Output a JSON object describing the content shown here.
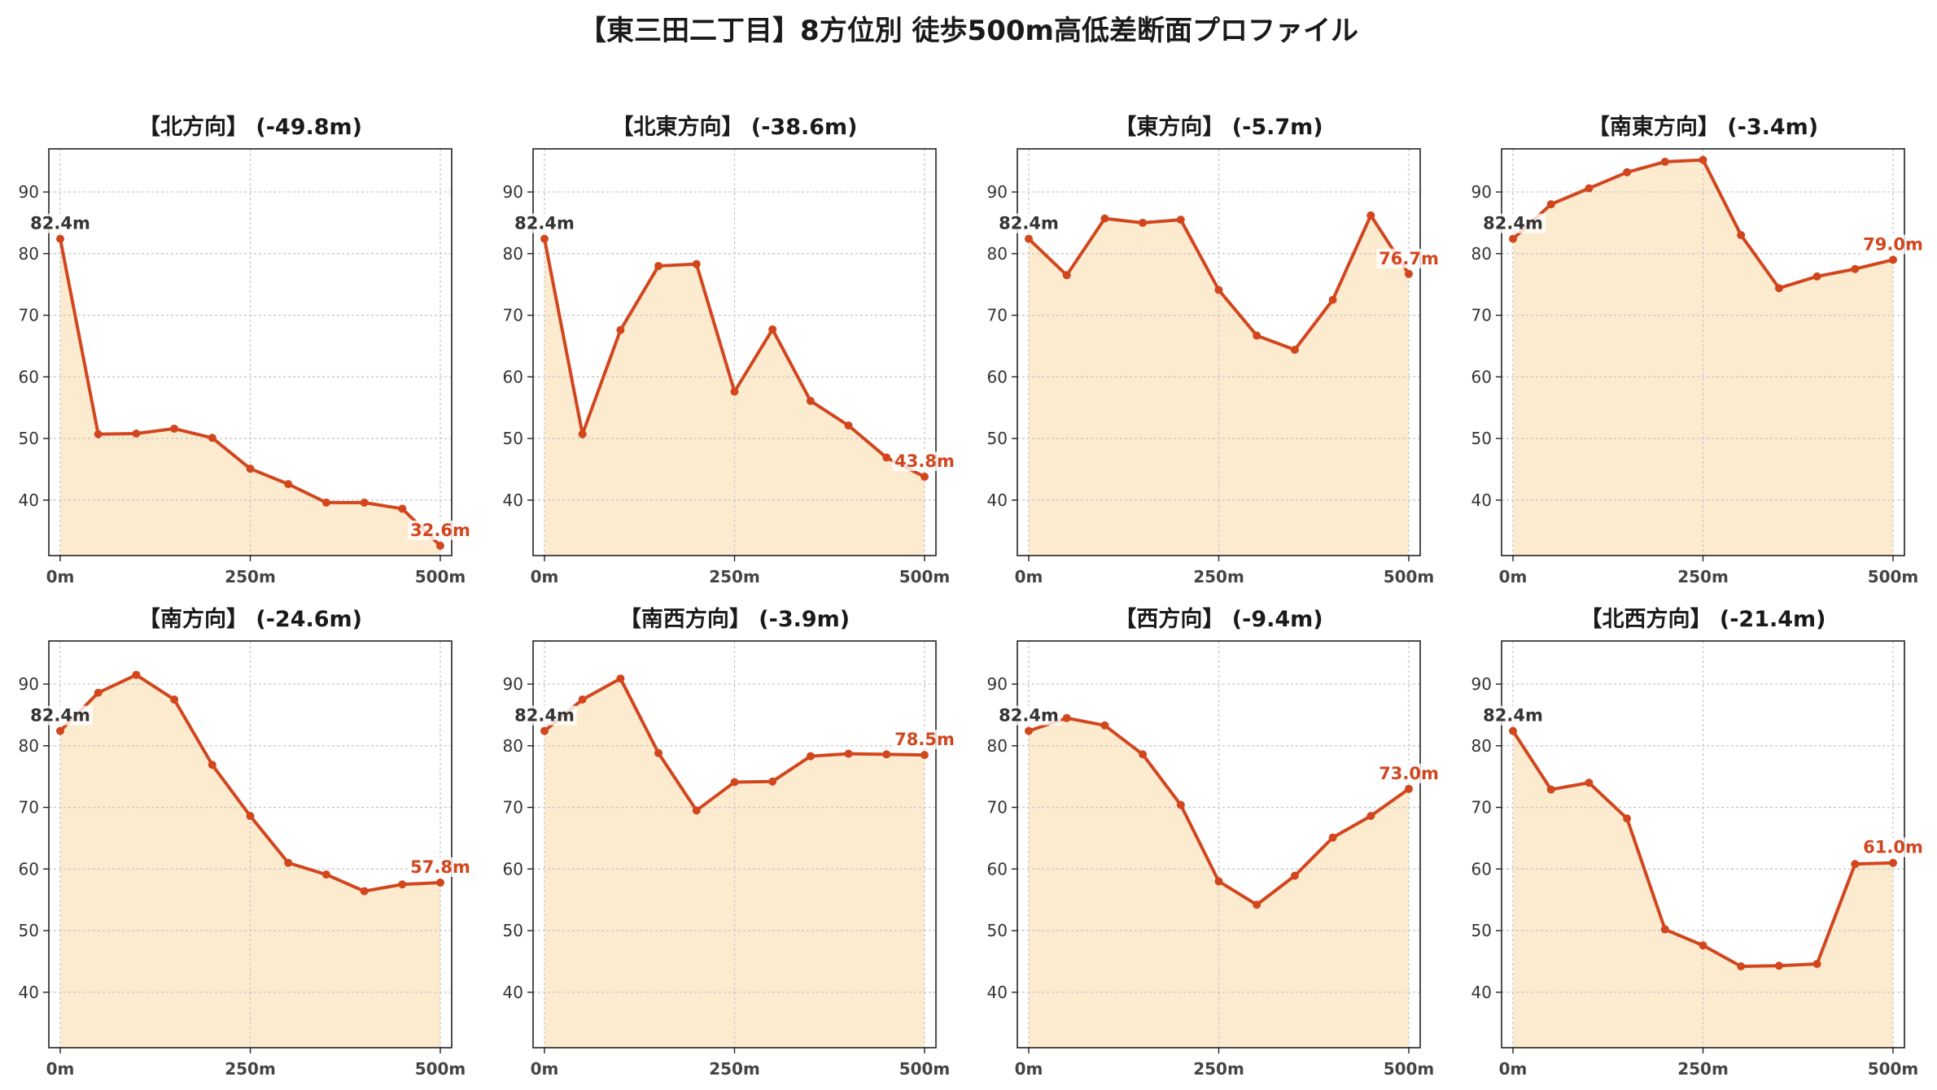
{
  "title": "【東三田二丁目】8方位別 徒歩500m高低差断面プロファイル",
  "colors": {
    "line": "#d2461e",
    "fill": "#fdebd0",
    "grid": "#c8c8c8",
    "start_label": "#333333"
  },
  "chart_data": [
    {
      "type": "area",
      "title": "【北方向】 (-49.8m)",
      "x": [
        0,
        50,
        100,
        150,
        200,
        250,
        300,
        350,
        400,
        450,
        500
      ],
      "y": [
        82.4,
        50.7,
        50.8,
        51.6,
        50.1,
        45.1,
        42.6,
        39.6,
        39.6,
        38.6,
        32.6
      ],
      "start_label": "82.4m",
      "end_label": "32.6m",
      "xticks": [
        "0m",
        "250m",
        "500m"
      ],
      "yticks": [
        40,
        50,
        60,
        70,
        80,
        90
      ],
      "ylim": [
        31,
        97
      ],
      "xlim": [
        -15,
        515
      ]
    },
    {
      "type": "area",
      "title": "【北東方向】 (-38.6m)",
      "x": [
        0,
        50,
        100,
        150,
        200,
        250,
        300,
        350,
        400,
        450,
        500
      ],
      "y": [
        82.4,
        50.7,
        67.6,
        78.0,
        78.3,
        57.6,
        67.7,
        56.1,
        52.1,
        46.9,
        43.8
      ],
      "start_label": "82.4m",
      "end_label": "43.8m",
      "xticks": [
        "0m",
        "250m",
        "500m"
      ],
      "yticks": [
        40,
        50,
        60,
        70,
        80,
        90
      ],
      "ylim": [
        31,
        97
      ],
      "xlim": [
        -15,
        515
      ]
    },
    {
      "type": "area",
      "title": "【東方向】 (-5.7m)",
      "x": [
        0,
        50,
        100,
        150,
        200,
        250,
        300,
        350,
        400,
        450,
        500
      ],
      "y": [
        82.4,
        76.5,
        85.7,
        85.0,
        85.5,
        74.1,
        66.7,
        64.4,
        72.5,
        86.2,
        76.7
      ],
      "start_label": "82.4m",
      "end_label": "76.7m",
      "xticks": [
        "0m",
        "250m",
        "500m"
      ],
      "yticks": [
        40,
        50,
        60,
        70,
        80,
        90
      ],
      "ylim": [
        31,
        97
      ],
      "xlim": [
        -15,
        515
      ]
    },
    {
      "type": "area",
      "title": "【南東方向】 (-3.4m)",
      "x": [
        0,
        50,
        100,
        150,
        200,
        250,
        300,
        350,
        400,
        450,
        500
      ],
      "y": [
        82.4,
        88.0,
        90.6,
        93.2,
        94.9,
        95.2,
        83.0,
        74.4,
        76.3,
        77.5,
        79.0
      ],
      "start_label": "82.4m",
      "end_label": "79.0m",
      "xticks": [
        "0m",
        "250m",
        "500m"
      ],
      "yticks": [
        40,
        50,
        60,
        70,
        80,
        90
      ],
      "ylim": [
        31,
        97
      ],
      "xlim": [
        -15,
        515
      ]
    },
    {
      "type": "area",
      "title": "【南方向】 (-24.6m)",
      "x": [
        0,
        50,
        100,
        150,
        200,
        250,
        300,
        350,
        400,
        450,
        500
      ],
      "y": [
        82.4,
        88.6,
        91.5,
        87.5,
        76.9,
        68.6,
        61.0,
        59.1,
        56.4,
        57.5,
        57.8
      ],
      "start_label": "82.4m",
      "end_label": "57.8m",
      "xticks": [
        "0m",
        "250m",
        "500m"
      ],
      "yticks": [
        40,
        50,
        60,
        70,
        80,
        90
      ],
      "ylim": [
        31,
        97
      ],
      "xlim": [
        -15,
        515
      ]
    },
    {
      "type": "area",
      "title": "【南西方向】 (-3.9m)",
      "x": [
        0,
        50,
        100,
        150,
        200,
        250,
        300,
        350,
        400,
        450,
        500
      ],
      "y": [
        82.4,
        87.5,
        90.9,
        78.8,
        69.5,
        74.1,
        74.2,
        78.3,
        78.7,
        78.6,
        78.5
      ],
      "start_label": "82.4m",
      "end_label": "78.5m",
      "xticks": [
        "0m",
        "250m",
        "500m"
      ],
      "yticks": [
        40,
        50,
        60,
        70,
        80,
        90
      ],
      "ylim": [
        31,
        97
      ],
      "xlim": [
        -15,
        515
      ]
    },
    {
      "type": "area",
      "title": "【西方向】 (-9.4m)",
      "x": [
        0,
        50,
        100,
        150,
        200,
        250,
        300,
        350,
        400,
        450,
        500
      ],
      "y": [
        82.4,
        84.5,
        83.3,
        78.6,
        70.4,
        58.0,
        54.2,
        58.9,
        65.1,
        68.6,
        73.0
      ],
      "start_label": "82.4m",
      "end_label": "73.0m",
      "xticks": [
        "0m",
        "250m",
        "500m"
      ],
      "yticks": [
        40,
        50,
        60,
        70,
        80,
        90
      ],
      "ylim": [
        31,
        97
      ],
      "xlim": [
        -15,
        515
      ]
    },
    {
      "type": "area",
      "title": "【北西方向】 (-21.4m)",
      "x": [
        0,
        50,
        100,
        150,
        200,
        250,
        300,
        350,
        400,
        450,
        500
      ],
      "y": [
        82.4,
        72.9,
        74.0,
        68.2,
        50.2,
        47.6,
        44.2,
        44.3,
        44.6,
        60.8,
        61.0
      ],
      "start_label": "82.4m",
      "end_label": "61.0m",
      "xticks": [
        "0m",
        "250m",
        "500m"
      ],
      "yticks": [
        40,
        50,
        60,
        70,
        80,
        90
      ],
      "ylim": [
        31,
        97
      ],
      "xlim": [
        -15,
        515
      ]
    }
  ]
}
